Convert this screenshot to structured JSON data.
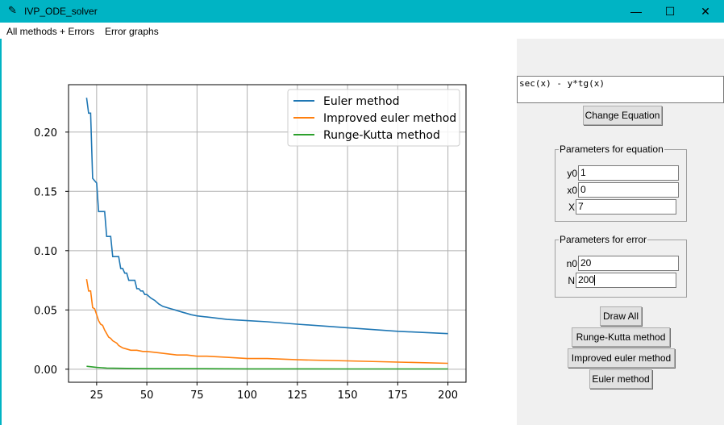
{
  "window": {
    "title": "IVP_ODE_solver",
    "title_icon": "feather-icon",
    "controls": {
      "minimize": "—",
      "maximize": "☐",
      "close": "✕"
    }
  },
  "menu": {
    "items": [
      "All methods + Errors",
      "Error graphs"
    ]
  },
  "equation": {
    "text": "sec(x) - y*tg(x)"
  },
  "buttons": {
    "change_equation": "Change Equation",
    "draw_all": "Draw All",
    "runge_kutta": "Runge-Kutta method",
    "improved_euler": "Improved euler method",
    "euler": "Euler method"
  },
  "params_equation": {
    "legend": "Parameters for equation",
    "fields": [
      {
        "label": "y0",
        "value": "1"
      },
      {
        "label": "x0",
        "value": "0"
      },
      {
        "label": "X",
        "value": "7"
      }
    ]
  },
  "params_error": {
    "legend": "Parameters for error",
    "fields": [
      {
        "label": "n0",
        "value": "20"
      },
      {
        "label": "N",
        "value": "200"
      }
    ]
  },
  "colors": {
    "titlebar": "#00b4c4",
    "euler": "#1f77b4",
    "improved": "#ff7f0e",
    "rk": "#2ca02c"
  },
  "chart_data": {
    "type": "line",
    "title": "",
    "xlabel": "",
    "ylabel": "",
    "xlim": [
      11,
      209
    ],
    "ylim": [
      -0.011,
      0.24
    ],
    "xticks": [
      25,
      50,
      75,
      100,
      125,
      150,
      175,
      200
    ],
    "yticks": [
      0.0,
      0.05,
      0.1,
      0.15,
      0.2
    ],
    "ytick_labels": [
      "0.00",
      "0.05",
      "0.10",
      "0.15",
      "0.20"
    ],
    "grid": true,
    "legend_position": "top-right",
    "series": [
      {
        "name": "Euler method",
        "color": "#1f77b4",
        "x": [
          20,
          21,
          22,
          23,
          24,
          25,
          26,
          27,
          28,
          29,
          30,
          31,
          32,
          33,
          34,
          35,
          36,
          37,
          38,
          39,
          40,
          41,
          42,
          43,
          44,
          45,
          46,
          47,
          48,
          49,
          50,
          52,
          54,
          56,
          58,
          60,
          62,
          64,
          66,
          68,
          70,
          72,
          75,
          80,
          85,
          90,
          100,
          110,
          125,
          150,
          175,
          200
        ],
        "y": [
          0.229,
          0.216,
          0.216,
          0.161,
          0.159,
          0.157,
          0.133,
          0.133,
          0.133,
          0.133,
          0.112,
          0.112,
          0.112,
          0.095,
          0.095,
          0.095,
          0.095,
          0.085,
          0.085,
          0.081,
          0.081,
          0.075,
          0.075,
          0.075,
          0.075,
          0.068,
          0.068,
          0.066,
          0.066,
          0.063,
          0.063,
          0.06,
          0.058,
          0.055,
          0.053,
          0.052,
          0.051,
          0.05,
          0.049,
          0.048,
          0.047,
          0.046,
          0.045,
          0.044,
          0.043,
          0.042,
          0.041,
          0.04,
          0.038,
          0.035,
          0.032,
          0.03
        ]
      },
      {
        "name": "Improved euler method",
        "color": "#ff7f0e",
        "x": [
          20,
          21,
          22,
          23,
          24,
          25,
          26,
          27,
          28,
          29,
          30,
          31,
          32,
          33,
          34,
          35,
          36,
          37,
          38,
          40,
          42,
          45,
          48,
          50,
          55,
          60,
          65,
          70,
          75,
          80,
          90,
          100,
          110,
          125,
          150,
          175,
          200
        ],
        "y": [
          0.076,
          0.066,
          0.066,
          0.052,
          0.051,
          0.046,
          0.041,
          0.038,
          0.037,
          0.033,
          0.03,
          0.027,
          0.026,
          0.024,
          0.023,
          0.022,
          0.02,
          0.019,
          0.018,
          0.017,
          0.016,
          0.016,
          0.015,
          0.015,
          0.014,
          0.013,
          0.012,
          0.012,
          0.011,
          0.011,
          0.01,
          0.009,
          0.009,
          0.008,
          0.007,
          0.006,
          0.005
        ]
      },
      {
        "name": "Runge-Kutta method",
        "color": "#2ca02c",
        "x": [
          20,
          25,
          30,
          40,
          50,
          75,
          100,
          150,
          200
        ],
        "y": [
          0.0025,
          0.0015,
          0.001,
          0.0007,
          0.0005,
          0.0004,
          0.0003,
          0.0002,
          0.0002
        ]
      }
    ]
  }
}
